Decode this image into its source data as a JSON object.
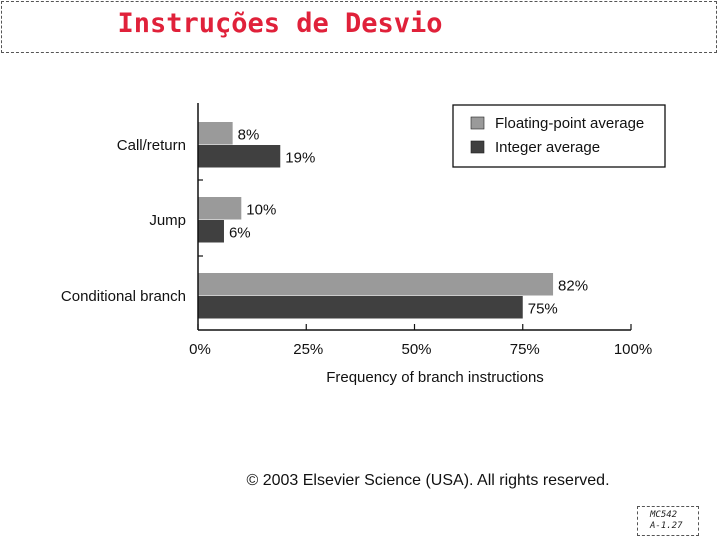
{
  "slide": {
    "title": "Instruções de Desvio",
    "copyright": "© 2003 Elsevier Science (USA). All rights reserved.",
    "page_ref_line1": "MC542",
    "page_ref_line2": "A-1.27"
  },
  "chart_data": {
    "type": "bar",
    "orientation": "horizontal",
    "categories": [
      "Call/return",
      "Jump",
      "Conditional branch"
    ],
    "series": [
      {
        "name": "Floating-point average",
        "values": [
          8,
          10,
          82
        ],
        "labels": [
          "8%",
          "10%",
          "82%"
        ],
        "color": "#9a9a9a"
      },
      {
        "name": "Integer average",
        "values": [
          19,
          6,
          75
        ],
        "labels": [
          "19%",
          "6%",
          "75%"
        ],
        "color": "#404040"
      }
    ],
    "xlabel": "Frequency of branch instructions",
    "ylabel": "",
    "xlim": [
      0,
      100
    ],
    "xticks": [
      0,
      25,
      50,
      75,
      100
    ],
    "xtick_labels": [
      "0%",
      "25%",
      "50%",
      "75%",
      "100%"
    ],
    "legend_position": "top-right",
    "grid": false
  }
}
